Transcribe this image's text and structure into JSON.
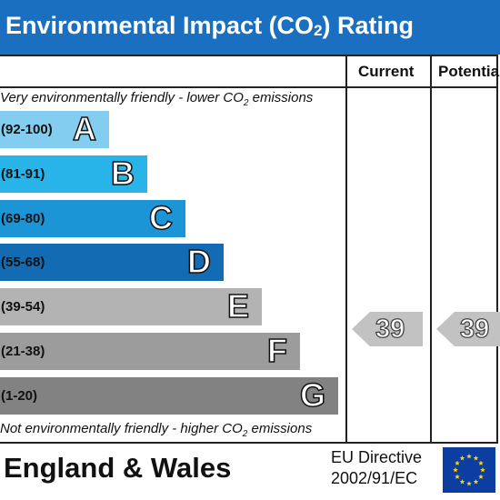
{
  "header": {
    "title_before": "Environmental Impact (CO",
    "title_sub": "2",
    "title_after": ") Rating"
  },
  "columns": {
    "current": "Current",
    "potential": "Potentia"
  },
  "notes": {
    "top_before": "Very environmentally friendly - lower CO",
    "top_sub": "2",
    "top_after": " emissions",
    "bottom_before": "Not environmentally friendly - higher CO",
    "bottom_sub": "2",
    "bottom_after": " emissions"
  },
  "footer": {
    "region": "England & Wales",
    "directive_line1": "EU Directive",
    "directive_line2": "2002/91/EC"
  },
  "colors": {
    "header": "#1a6fc0",
    "A": "#83cef0",
    "B": "#28b4e8",
    "C": "#1b95d6",
    "D": "#136bb4",
    "E": "#b3b3b3",
    "F": "#9c9c9c",
    "G": "#828282",
    "arrow": "#c2c2c2",
    "eu_flag": "#0c3da0",
    "eu_star": "#ffd500"
  },
  "chart_data": {
    "type": "table",
    "bands": [
      {
        "letter": "A",
        "range": "(92-100)"
      },
      {
        "letter": "B",
        "range": "(81-91)"
      },
      {
        "letter": "C",
        "range": "(69-80)"
      },
      {
        "letter": "D",
        "range": "(55-68)"
      },
      {
        "letter": "E",
        "range": "(39-54)"
      },
      {
        "letter": "F",
        "range": "(21-38)"
      },
      {
        "letter": "G",
        "range": "(1-20)"
      }
    ],
    "current": {
      "value": 39,
      "label": "39"
    },
    "potential": {
      "value": 39,
      "label": "39"
    }
  }
}
